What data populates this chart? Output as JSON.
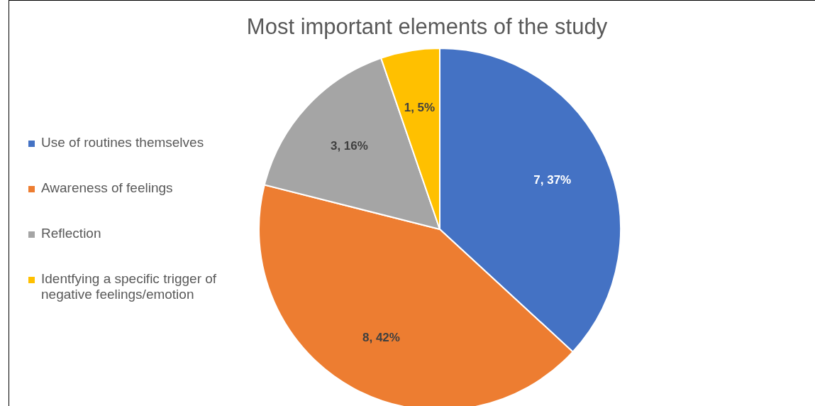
{
  "chart_data": {
    "type": "pie",
    "title": "Most important elements of the study",
    "categories": [
      "Use of routines themselves",
      "Awareness of feelings",
      "Reflection",
      "Identfying a specific trigger of negative feelings/emotion"
    ],
    "values": [
      7,
      8,
      3,
      1
    ],
    "colors": [
      "#4472c4",
      "#ed7d31",
      "#a5a5a5",
      "#ffc000"
    ],
    "value_labels": [
      "7, 37%",
      "8, 42%",
      "3, 16%",
      "1, 5%"
    ],
    "legend": "left"
  }
}
